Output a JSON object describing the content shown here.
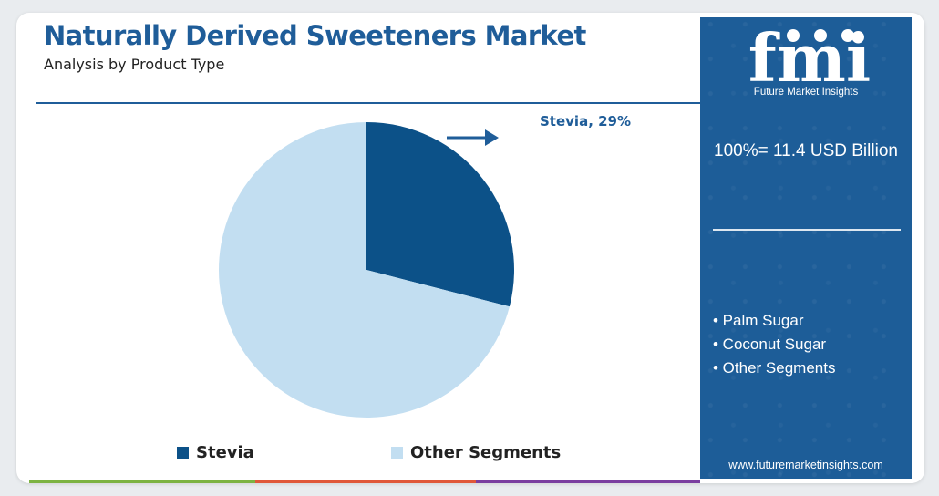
{
  "header": {
    "title": "Naturally Derived Sweeteners Market",
    "subtitle": "Analysis by Product Type"
  },
  "chart_data": {
    "type": "pie",
    "categories": [
      "Stevia",
      "Other Segments"
    ],
    "values": [
      29,
      71
    ],
    "unit": "%",
    "colors": [
      "#0c5188",
      "#c2def1"
    ],
    "data_labels": [
      "Stevia, 29%"
    ],
    "legend_position": "bottom"
  },
  "legend": {
    "items": [
      {
        "label": "Stevia",
        "color": "#0c5188"
      },
      {
        "label": "Other Segments",
        "color": "#c2def1"
      }
    ]
  },
  "side_panel": {
    "logo_text": "fmi",
    "logo_subtitle": "Future Market Insights",
    "total": "100%= 11.4 USD Billion",
    "segments": [
      "• Palm Sugar",
      "• Coconut Sugar",
      "• Other Segments"
    ],
    "website": "www.futuremarketinsights.com",
    "background_color": "#1d5d98"
  },
  "accent_bar_colors": [
    "#7cb342",
    "#e0583a",
    "#7b3fa0"
  ]
}
